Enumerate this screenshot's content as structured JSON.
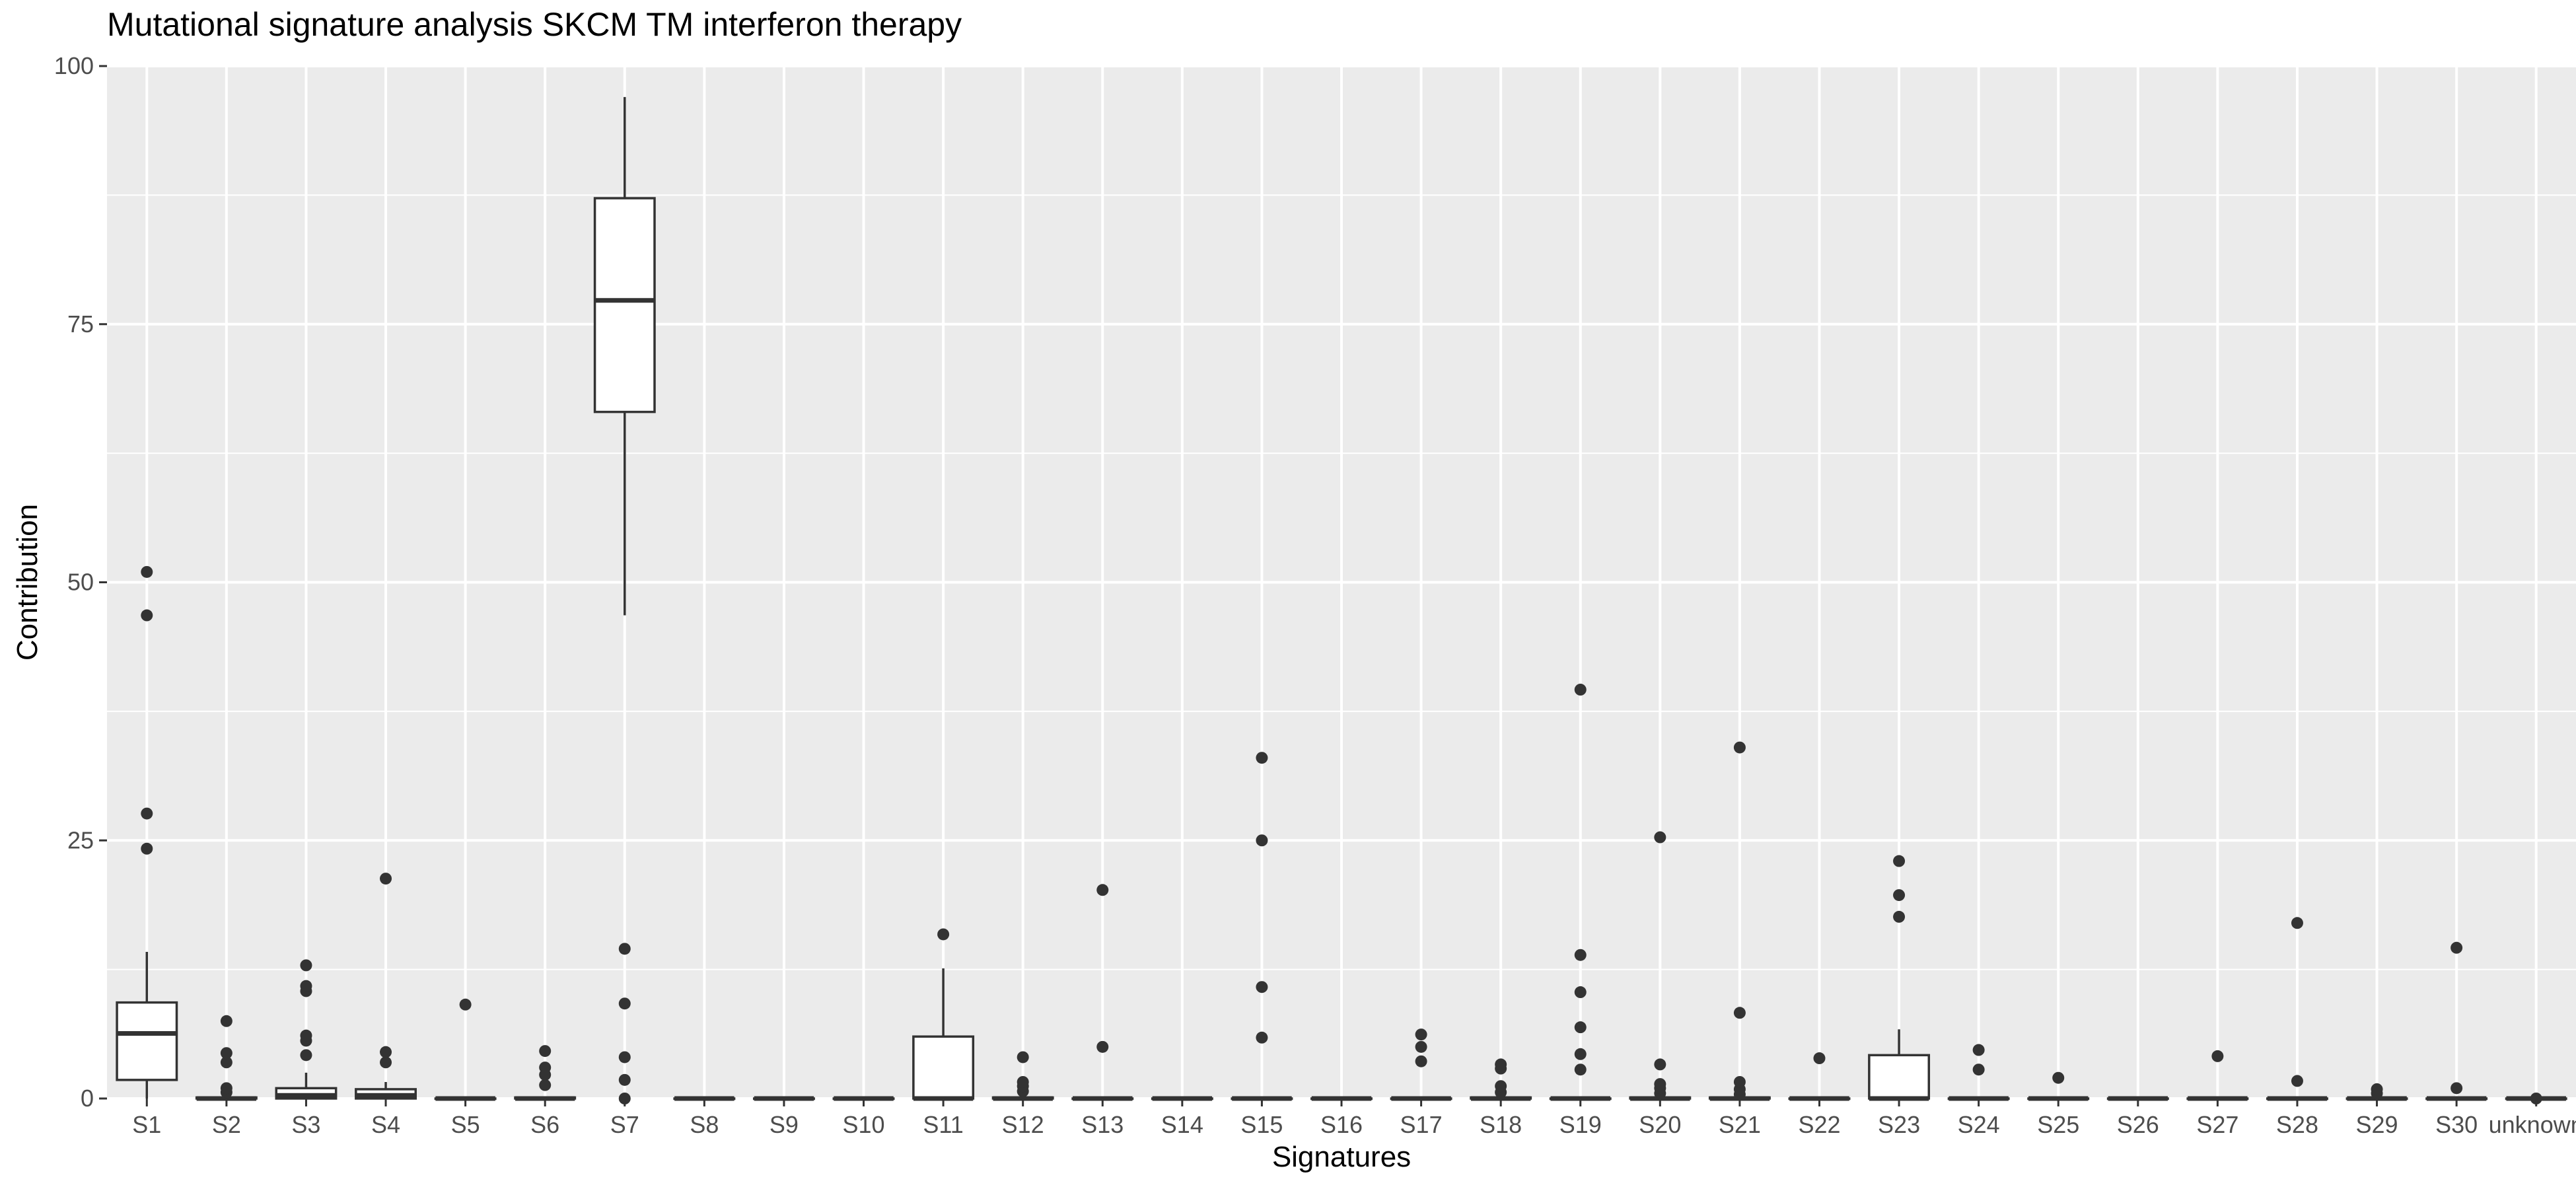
{
  "chart_data": {
    "type": "box",
    "title": "Mutational signature analysis SKCM TM interferon therapy",
    "xlabel": "Signatures",
    "ylabel": "Contribution",
    "ylim": [
      0,
      100
    ],
    "yticks": [
      0,
      25,
      50,
      75,
      100
    ],
    "grid": true,
    "legend": "none",
    "colors": {
      "panel": "#ebebeb",
      "grid_major": "#ffffff",
      "box_fill": "#ffffff",
      "box_stroke": "#333333",
      "outlier": "#333333"
    },
    "categories": [
      "S1",
      "S2",
      "S3",
      "S4",
      "S5",
      "S6",
      "S7",
      "S8",
      "S9",
      "S10",
      "S11",
      "S12",
      "S13",
      "S14",
      "S15",
      "S16",
      "S17",
      "S18",
      "S19",
      "S20",
      "S21",
      "S22",
      "S23",
      "S24",
      "S25",
      "S26",
      "S27",
      "S28",
      "S29",
      "S30",
      "unknown"
    ],
    "boxes": [
      {
        "q1": 1.8,
        "median": 6.3,
        "q3": 9.3,
        "whisker_low": 0,
        "whisker_high": 14.2,
        "outliers": [
          24.2,
          27.6,
          46.8,
          51.0
        ]
      },
      {
        "q1": 0,
        "median": 0,
        "q3": 0.1,
        "whisker_low": 0,
        "whisker_high": 0.2,
        "outliers": [
          0.6,
          1.0,
          3.5,
          4.4,
          7.5
        ]
      },
      {
        "q1": 0,
        "median": 0.3,
        "q3": 1.0,
        "whisker_low": 0,
        "whisker_high": 2.5,
        "outliers": [
          4.2,
          5.6,
          6.1,
          10.4,
          10.9,
          12.9
        ]
      },
      {
        "q1": 0,
        "median": 0.3,
        "q3": 0.9,
        "whisker_low": 0,
        "whisker_high": 1.6,
        "outliers": [
          3.5,
          4.5,
          21.3
        ]
      },
      {
        "q1": 0,
        "median": 0,
        "q3": 0,
        "whisker_low": 0,
        "whisker_high": 0,
        "outliers": [
          9.1
        ]
      },
      {
        "q1": 0,
        "median": 0,
        "q3": 0.1,
        "whisker_low": 0,
        "whisker_high": 0.2,
        "outliers": [
          1.3,
          2.3,
          3.0,
          4.6
        ]
      },
      {
        "q1": 66.5,
        "median": 77.3,
        "q3": 87.2,
        "whisker_low": 46.8,
        "whisker_high": 97.0,
        "outliers": [
          0,
          1.8,
          4.0,
          9.2,
          14.5
        ]
      },
      {
        "q1": 0,
        "median": 0,
        "q3": 0,
        "whisker_low": 0,
        "whisker_high": 0,
        "outliers": []
      },
      {
        "q1": 0,
        "median": 0,
        "q3": 0,
        "whisker_low": 0,
        "whisker_high": 0,
        "outliers": []
      },
      {
        "q1": 0,
        "median": 0,
        "q3": 0,
        "whisker_low": 0,
        "whisker_high": 0,
        "outliers": []
      },
      {
        "q1": 0,
        "median": 0,
        "q3": 6.0,
        "whisker_low": 0,
        "whisker_high": 12.6,
        "outliers": [
          15.9
        ]
      },
      {
        "q1": 0,
        "median": 0,
        "q3": 0.1,
        "whisker_low": 0,
        "whisker_high": 0.2,
        "outliers": [
          0.7,
          1.2,
          1.6,
          4.0
        ]
      },
      {
        "q1": 0,
        "median": 0,
        "q3": 0,
        "whisker_low": 0,
        "whisker_high": 0,
        "outliers": [
          5.0,
          20.2
        ]
      },
      {
        "q1": 0,
        "median": 0,
        "q3": 0,
        "whisker_low": 0,
        "whisker_high": 0,
        "outliers": []
      },
      {
        "q1": 0,
        "median": 0,
        "q3": 0,
        "whisker_low": 0,
        "whisker_high": 0,
        "outliers": [
          5.9,
          10.8,
          25.0,
          33.0
        ]
      },
      {
        "q1": 0,
        "median": 0,
        "q3": 0,
        "whisker_low": 0,
        "whisker_high": 0,
        "outliers": []
      },
      {
        "q1": 0,
        "median": 0,
        "q3": 0,
        "whisker_low": 0,
        "whisker_high": 0,
        "outliers": [
          3.6,
          5.0,
          6.2
        ]
      },
      {
        "q1": 0,
        "median": 0,
        "q3": 0.1,
        "whisker_low": 0,
        "whisker_high": 0.2,
        "outliers": [
          0.6,
          1.2,
          2.9,
          3.3
        ]
      },
      {
        "q1": 0,
        "median": 0,
        "q3": 0,
        "whisker_low": 0,
        "whisker_high": 0,
        "outliers": [
          2.8,
          4.3,
          6.9,
          10.3,
          13.9,
          39.6
        ]
      },
      {
        "q1": 0,
        "median": 0,
        "q3": 0.1,
        "whisker_low": 0,
        "whisker_high": 0.2,
        "outliers": [
          0.5,
          1.0,
          1.4,
          3.3,
          25.3
        ]
      },
      {
        "q1": 0,
        "median": 0,
        "q3": 0.1,
        "whisker_low": 0,
        "whisker_high": 0.2,
        "outliers": [
          0.4,
          0.9,
          1.6,
          8.3,
          34.0
        ]
      },
      {
        "q1": 0,
        "median": 0,
        "q3": 0,
        "whisker_low": 0,
        "whisker_high": 0,
        "outliers": [
          3.9
        ]
      },
      {
        "q1": 0,
        "median": 0,
        "q3": 4.2,
        "whisker_low": 0,
        "whisker_high": 6.7,
        "outliers": [
          17.6,
          19.7,
          23.0
        ]
      },
      {
        "q1": 0,
        "median": 0,
        "q3": 0,
        "whisker_low": 0,
        "whisker_high": 0,
        "outliers": [
          2.8,
          4.7
        ]
      },
      {
        "q1": 0,
        "median": 0,
        "q3": 0,
        "whisker_low": 0,
        "whisker_high": 0,
        "outliers": [
          2.0
        ]
      },
      {
        "q1": 0,
        "median": 0,
        "q3": 0,
        "whisker_low": 0,
        "whisker_high": 0,
        "outliers": []
      },
      {
        "q1": 0,
        "median": 0,
        "q3": 0,
        "whisker_low": 0,
        "whisker_high": 0,
        "outliers": [
          4.1
        ]
      },
      {
        "q1": 0,
        "median": 0,
        "q3": 0,
        "whisker_low": 0,
        "whisker_high": 0,
        "outliers": [
          1.7,
          17.0
        ]
      },
      {
        "q1": 0,
        "median": 0,
        "q3": 0,
        "whisker_low": 0,
        "whisker_high": 0,
        "outliers": [
          0.5,
          0.9
        ]
      },
      {
        "q1": 0,
        "median": 0,
        "q3": 0,
        "whisker_low": 0,
        "whisker_high": 0,
        "outliers": [
          1.0,
          14.6
        ]
      },
      {
        "q1": 0,
        "median": 0,
        "q3": 0,
        "whisker_low": 0,
        "whisker_high": 0,
        "outliers": [
          0
        ]
      }
    ]
  }
}
